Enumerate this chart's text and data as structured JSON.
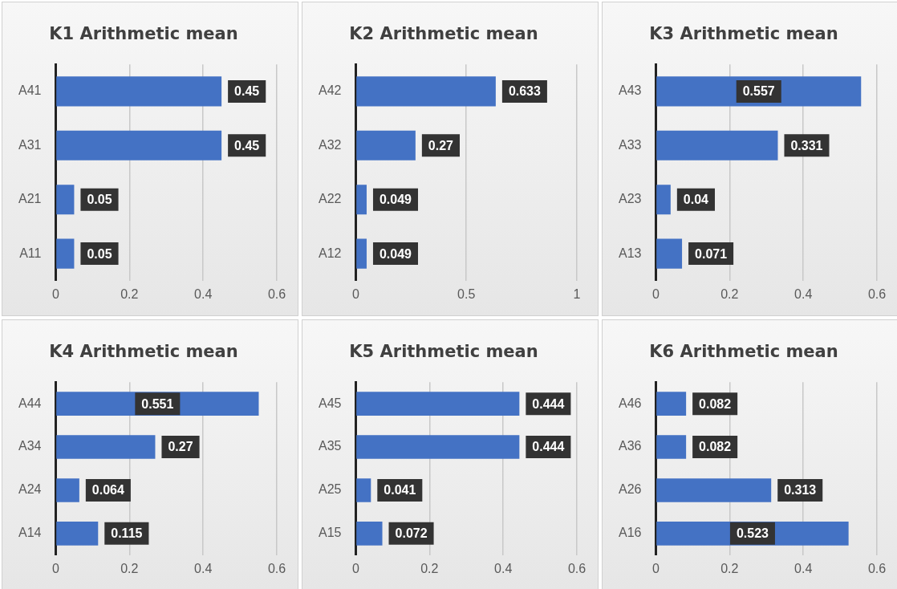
{
  "chart_data": [
    {
      "type": "bar",
      "orientation": "horizontal",
      "title": "K1 Arithmetic mean",
      "categories": [
        "A41",
        "A31",
        "A21",
        "A11"
      ],
      "values": [
        0.45,
        0.45,
        0.05,
        0.05
      ],
      "color": "#4472c4",
      "xlim": [
        0,
        0.6
      ],
      "xticks": [
        0,
        0.2,
        0.4,
        0.6
      ],
      "grid": "x",
      "data_labels": true,
      "legend": false
    },
    {
      "type": "bar",
      "orientation": "horizontal",
      "title": "K2 Arithmetic mean",
      "categories": [
        "A42",
        "A32",
        "A22",
        "A12"
      ],
      "values": [
        0.633,
        0.27,
        0.049,
        0.049
      ],
      "color": "#4472c4",
      "xlim": [
        0,
        1
      ],
      "xticks": [
        0,
        0.5,
        1
      ],
      "grid": "x",
      "data_labels": true,
      "legend": false
    },
    {
      "type": "bar",
      "orientation": "horizontal",
      "title": "K3 Arithmetic mean",
      "categories": [
        "A43",
        "A33",
        "A23",
        "A13"
      ],
      "values": [
        0.557,
        0.331,
        0.04,
        0.071
      ],
      "color": "#4472c4",
      "xlim": [
        0,
        0.6
      ],
      "xticks": [
        0,
        0.2,
        0.4,
        0.6
      ],
      "grid": "x",
      "data_labels": true,
      "legend": false
    },
    {
      "type": "bar",
      "orientation": "horizontal",
      "title": "K4 Arithmetic mean",
      "categories": [
        "A44",
        "A34",
        "A24",
        "A14"
      ],
      "values": [
        0.551,
        0.27,
        0.064,
        0.115
      ],
      "color": "#4472c4",
      "xlim": [
        0,
        0.6
      ],
      "xticks": [
        0,
        0.2,
        0.4,
        0.6
      ],
      "grid": "x",
      "data_labels": true,
      "legend": false
    },
    {
      "type": "bar",
      "orientation": "horizontal",
      "title": "K5 Arithmetic mean",
      "categories": [
        "A45",
        "A35",
        "A25",
        "A15"
      ],
      "values": [
        0.444,
        0.444,
        0.041,
        0.072
      ],
      "color": "#4472c4",
      "xlim": [
        0,
        0.6
      ],
      "xticks": [
        0,
        0.2,
        0.4,
        0.6
      ],
      "grid": "x",
      "data_labels": true,
      "legend": false
    },
    {
      "type": "bar",
      "orientation": "horizontal",
      "title": "K6 Arithmetic mean",
      "categories": [
        "A46",
        "A36",
        "A26",
        "A16"
      ],
      "values": [
        0.082,
        0.082,
        0.313,
        0.523
      ],
      "color": "#4472c4",
      "xlim": [
        0,
        0.6
      ],
      "xticks": [
        0,
        0.2,
        0.4,
        0.6
      ],
      "grid": "x",
      "data_labels": true,
      "legend": false
    }
  ]
}
